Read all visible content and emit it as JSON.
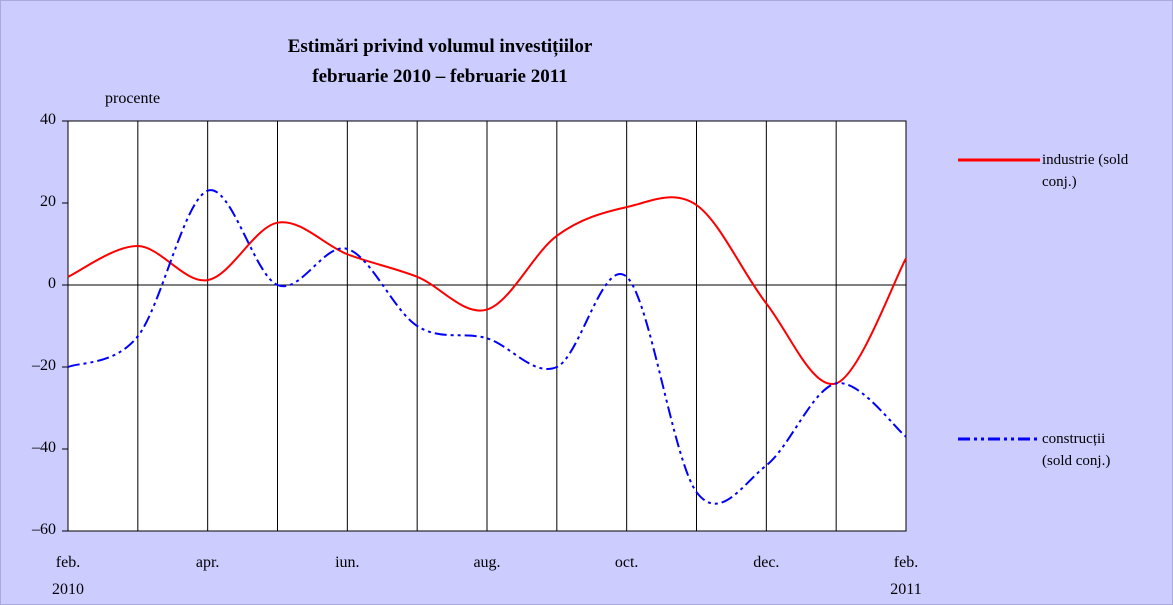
{
  "chart_data": {
    "type": "line",
    "title": "Estimări privind volumul investițiilor",
    "subtitle": "februarie 2010 – februarie 2011",
    "ylabel": "procente",
    "categories": [
      "feb. 2010",
      null,
      "apr.",
      null,
      "iun.",
      null,
      "aug.",
      null,
      "oct.",
      null,
      "dec.",
      null,
      "feb. 2011"
    ],
    "series": [
      {
        "name": "industrie (sold conj.)",
        "color": "#ff0000",
        "dash": "solid",
        "values": [
          2,
          9.5,
          1.2,
          15.2,
          7.5,
          2,
          -6,
          12,
          19,
          19.5,
          -4.5,
          -24,
          6.5
        ]
      },
      {
        "name": "construcții (sold conj.)",
        "color": "#0000ff",
        "dash": "dash-dot-dot",
        "values": [
          -20,
          -12.5,
          23,
          0,
          8.8,
          -10,
          -13,
          -20,
          2,
          -50.5,
          -44,
          -24,
          -37
        ]
      }
    ],
    "ylim": [
      -60,
      40
    ],
    "yticks": [
      40,
      20,
      0,
      {
        "value": -20,
        "label": "–20"
      },
      {
        "value": -40,
        "label": "–40"
      },
      {
        "value": -60,
        "label": "–60"
      }
    ],
    "grid": "x",
    "legend": "right"
  }
}
